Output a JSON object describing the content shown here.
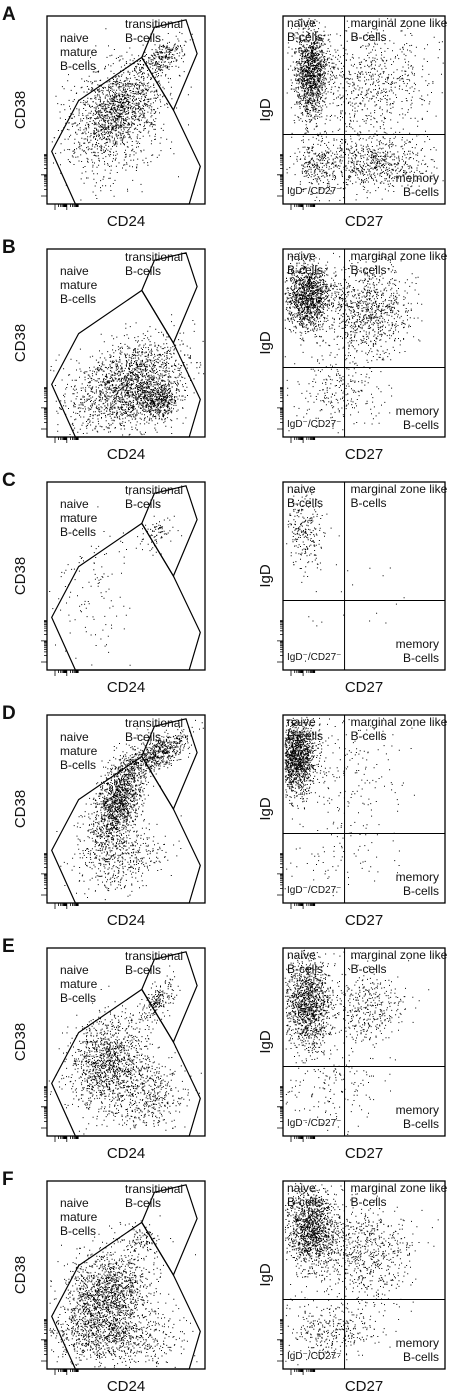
{
  "figure": {
    "panels": [
      {
        "letter": "A",
        "left": {
          "x_label": "CD24",
          "y_label": "CD38",
          "transitional_label": [
            "transitional",
            "B-cells"
          ],
          "naive_label": [
            "naive",
            "mature",
            "B-cells"
          ]
        },
        "right": {
          "x_label": "CD27",
          "y_label": "IgD",
          "naive_label": [
            "naive",
            "B-cells"
          ],
          "marginal_label": [
            "marginal zone like",
            "B-cells"
          ],
          "memory_label": [
            "memory",
            "B-cells"
          ],
          "negative_label": "IgD⁻/CD27⁻"
        }
      },
      {
        "letter": "B",
        "left": {
          "x_label": "CD24",
          "y_label": "CD38",
          "transitional_label": [
            "transitional",
            "B-cells"
          ],
          "naive_label": [
            "naive",
            "mature",
            "B-cells"
          ]
        },
        "right": {
          "x_label": "CD27",
          "y_label": "IgD",
          "naive_label": [
            "naive",
            "B-cells"
          ],
          "marginal_label": [
            "marginal zone like",
            "B-cells"
          ],
          "memory_label": [
            "memory",
            "B-cells"
          ],
          "negative_label": "IgD⁻/CD27⁻"
        }
      },
      {
        "letter": "C",
        "left": {
          "x_label": "CD24",
          "y_label": "CD38",
          "transitional_label": [
            "transitional",
            "B-cells"
          ],
          "naive_label": [
            "naive",
            "mature",
            "B-cells"
          ]
        },
        "right": {
          "x_label": "CD27",
          "y_label": "IgD",
          "naive_label": [
            "naive",
            "B-cells"
          ],
          "marginal_label": [
            "marginal zone like",
            "B-cells"
          ],
          "memory_label": [
            "memory",
            "B-cells"
          ],
          "negative_label": "IgD⁻/CD27⁻"
        }
      },
      {
        "letter": "D",
        "left": {
          "x_label": "CD24",
          "y_label": "CD38",
          "transitional_label": [
            "transitional",
            "B-cells"
          ],
          "naive_label": [
            "naive",
            "mature",
            "B-cells"
          ]
        },
        "right": {
          "x_label": "CD27",
          "y_label": "IgD",
          "naive_label": [
            "naive",
            "B-cells"
          ],
          "marginal_label": [
            "marginal zone like",
            "B-cells"
          ],
          "memory_label": [
            "memory",
            "B-cells"
          ],
          "negative_label": "IgD⁻/CD27⁻"
        }
      },
      {
        "letter": "E",
        "left": {
          "x_label": "CD24",
          "y_label": "CD38",
          "transitional_label": [
            "transitional",
            "B-cells"
          ],
          "naive_label": [
            "naive",
            "mature",
            "B-cells"
          ]
        },
        "right": {
          "x_label": "CD27",
          "y_label": "IgD",
          "naive_label": [
            "naive",
            "B-cells"
          ],
          "marginal_label": [
            "marginal zone like",
            "B-cells"
          ],
          "memory_label": [
            "memory",
            "B-cells"
          ],
          "negative_label": "IgD⁻/CD27⁻"
        }
      },
      {
        "letter": "F",
        "left": {
          "x_label": "CD24",
          "y_label": "CD38",
          "transitional_label": [
            "transitional",
            "B-cells"
          ],
          "naive_label": [
            "naive",
            "mature",
            "B-cells"
          ]
        },
        "right": {
          "x_label": "CD27",
          "y_label": "IgD",
          "naive_label": [
            "naive",
            "B-cells"
          ],
          "marginal_label": [
            "marginal zone like",
            "B-cells"
          ],
          "memory_label": [
            "memory",
            "B-cells"
          ],
          "negative_label": "IgD⁻/CD27⁻"
        }
      }
    ]
  }
}
